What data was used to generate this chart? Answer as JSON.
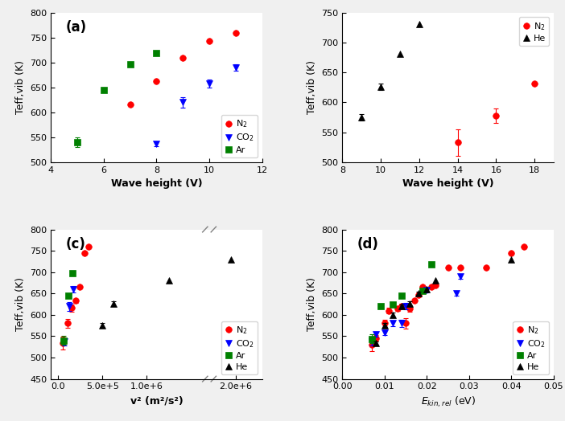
{
  "panel_a": {
    "xlabel": "Wave height (V)",
    "ylabel": "Teff,vib (K)",
    "xlim": [
      4,
      12
    ],
    "ylim": [
      500,
      800
    ],
    "xticks": [
      4,
      6,
      8,
      10,
      12
    ],
    "yticks": [
      500,
      550,
      600,
      650,
      700,
      750,
      800
    ],
    "N2": {
      "x": [
        7,
        8,
        9,
        10,
        11
      ],
      "y": [
        615,
        663,
        710,
        743,
        760
      ],
      "yerr": [
        0,
        0,
        0,
        0,
        0
      ],
      "color": "red",
      "marker": "o"
    },
    "CO2": {
      "x": [
        8,
        9,
        10,
        11
      ],
      "y": [
        537,
        620,
        658,
        690
      ],
      "yerr": [
        5,
        10,
        8,
        6
      ],
      "color": "blue",
      "marker": "v"
    },
    "Ar": {
      "x": [
        5,
        6,
        7,
        8
      ],
      "y": [
        540,
        644,
        697,
        719
      ],
      "yerr": [
        10,
        0,
        0,
        0
      ],
      "color": "green",
      "marker": "s"
    }
  },
  "panel_b": {
    "xlabel": "Wave height (V)",
    "ylabel": "Teff,vib (K)",
    "xlim": [
      8,
      19
    ],
    "ylim": [
      500,
      750
    ],
    "xticks": [
      8,
      10,
      12,
      14,
      16,
      18
    ],
    "yticks": [
      500,
      550,
      600,
      650,
      700,
      750
    ],
    "N2": {
      "x": [
        14,
        16,
        18
      ],
      "y": [
        533,
        578,
        632
      ],
      "yerr": [
        22,
        12,
        0
      ],
      "color": "red",
      "marker": "o"
    },
    "He": {
      "x": [
        9,
        10,
        11,
        12
      ],
      "y": [
        575,
        626,
        681,
        731
      ],
      "yerr": [
        6,
        5,
        0,
        0
      ],
      "color": "black",
      "marker": "^"
    }
  },
  "panel_c": {
    "xlabel": "v² (m²/s²)",
    "ylabel": "Teff,vib (K)",
    "ylim": [
      450,
      800
    ],
    "yticks": [
      450,
      500,
      550,
      600,
      650,
      700,
      750,
      800
    ],
    "xlim": [
      -80000,
      2300000
    ],
    "xticks": [
      0,
      500000,
      1000000,
      2000000
    ],
    "xticklabels": [
      "0.0",
      "5.0e+5",
      "1.0e+6",
      "2.0e+6"
    ],
    "N2": {
      "x": [
        55000,
        105000,
        155000,
        200000,
        245000,
        295000,
        340000
      ],
      "y": [
        533,
        580,
        616,
        633,
        665,
        745,
        760
      ],
      "yerr": [
        15,
        10,
        8,
        5,
        0,
        0,
        0
      ],
      "color": "red",
      "marker": "o"
    },
    "CO2": {
      "x": [
        70000,
        125000,
        175000
      ],
      "y": [
        537,
        620,
        660
      ],
      "yerr": [
        8,
        10,
        8
      ],
      "color": "blue",
      "marker": "v"
    },
    "Ar": {
      "x": [
        65000,
        115000,
        160000
      ],
      "y": [
        540,
        644,
        697
      ],
      "yerr": [
        10,
        0,
        0
      ],
      "color": "green",
      "marker": "s"
    },
    "He": {
      "x": [
        500000,
        625000,
        1250000,
        1950000
      ],
      "y": [
        576,
        626,
        680,
        730
      ],
      "yerr": [
        5,
        5,
        0,
        0
      ],
      "color": "black",
      "marker": "^"
    }
  },
  "panel_d": {
    "xlabel": "E_kin_rel",
    "ylabel": "Teff,vib (K)",
    "xlim": [
      0.0,
      0.05
    ],
    "ylim": [
      450,
      800
    ],
    "xticks": [
      0.0,
      0.01,
      0.02,
      0.03,
      0.04,
      0.05
    ],
    "yticks": [
      450,
      500,
      550,
      600,
      650,
      700,
      750,
      800
    ],
    "N2": {
      "x": [
        0.007,
        0.008,
        0.01,
        0.011,
        0.013,
        0.014,
        0.015,
        0.016,
        0.017,
        0.018,
        0.019,
        0.021,
        0.022,
        0.025,
        0.028,
        0.034,
        0.04,
        0.043
      ],
      "y": [
        530,
        545,
        580,
        610,
        615,
        620,
        580,
        615,
        633,
        647,
        665,
        665,
        670,
        710,
        710,
        710,
        745,
        760
      ],
      "yerr": [
        15,
        8,
        8,
        6,
        6,
        6,
        12,
        8,
        0,
        0,
        0,
        0,
        0,
        0,
        0,
        0,
        0,
        0
      ],
      "color": "red",
      "marker": "o"
    },
    "CO2": {
      "x": [
        0.007,
        0.008,
        0.01,
        0.012,
        0.014,
        0.015,
        0.02,
        0.027,
        0.028
      ],
      "y": [
        537,
        555,
        558,
        580,
        580,
        620,
        658,
        650,
        690
      ],
      "yerr": [
        8,
        6,
        6,
        6,
        8,
        8,
        6,
        5,
        5
      ],
      "color": "blue",
      "marker": "v"
    },
    "Ar": {
      "x": [
        0.007,
        0.009,
        0.012,
        0.014,
        0.019,
        0.021
      ],
      "y": [
        544,
        620,
        625,
        644,
        656,
        719
      ],
      "yerr": [
        10,
        0,
        0,
        0,
        0,
        0
      ],
      "color": "green",
      "marker": "s"
    },
    "He": {
      "x": [
        0.008,
        0.01,
        0.012,
        0.014,
        0.016,
        0.018,
        0.02,
        0.022,
        0.04
      ],
      "y": [
        533,
        575,
        600,
        620,
        626,
        650,
        660,
        680,
        730
      ],
      "yerr": [
        5,
        5,
        5,
        5,
        5,
        5,
        0,
        0,
        0
      ],
      "color": "black",
      "marker": "^"
    }
  }
}
